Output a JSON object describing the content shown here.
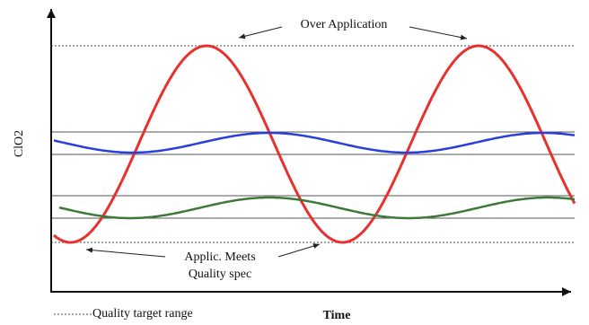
{
  "annotations": {
    "over_application": "Over Application",
    "meets_line1": "Applic. Meets",
    "meets_line2": "Quality spec"
  },
  "axes": {
    "y_label": "ClO2",
    "x_label": "Time"
  },
  "legend": {
    "label": "Quality target range"
  }
}
